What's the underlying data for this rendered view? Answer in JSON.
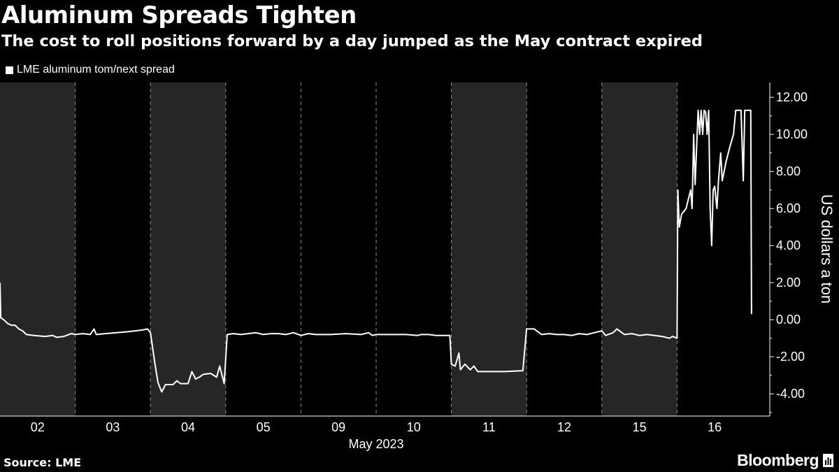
{
  "title": "Aluminum Spreads Tighten",
  "subtitle": "The cost to roll positions forward by a day jumped as the May contract expired",
  "legend": "LME aluminum tom/next spread",
  "source": "Source: LME",
  "brand": "Bloomberg",
  "colors": {
    "background": "#000000",
    "line": "#ffffff",
    "band": "#262626",
    "grid": "#8a8a8a",
    "text": "#ffffff"
  },
  "chart_data": {
    "type": "line",
    "xlabel": "May 2023",
    "ylabel": "US dollars a ton",
    "ylim": [
      -5.2,
      12.8
    ],
    "yticks": [
      "12.00",
      "10.00",
      "8.00",
      "6.00",
      "4.00",
      "2.00",
      "0.00",
      "-2.00",
      "-4.00"
    ],
    "ytick_values": [
      12,
      10,
      8,
      6,
      4,
      2,
      0,
      -2,
      -4
    ],
    "categories": [
      "02",
      "03",
      "04",
      "05",
      "09",
      "10",
      "11",
      "12",
      "15",
      "16"
    ],
    "shaded_days": [
      "02",
      "04",
      "11",
      "15"
    ],
    "grid": "vertical dashed day separators",
    "legend_position": "top-left",
    "series": [
      {
        "name": "LME aluminum tom/next spread",
        "points": [
          [
            0.0,
            2.0
          ],
          [
            0.01,
            0.1
          ],
          [
            0.05,
            0.0
          ],
          [
            0.1,
            -0.2
          ],
          [
            0.15,
            -0.3
          ],
          [
            0.2,
            -0.3
          ],
          [
            0.25,
            -0.5
          ],
          [
            0.3,
            -0.6
          ],
          [
            0.35,
            -0.8
          ],
          [
            0.45,
            -0.85
          ],
          [
            0.6,
            -0.9
          ],
          [
            0.7,
            -0.85
          ],
          [
            0.75,
            -0.95
          ],
          [
            0.85,
            -0.9
          ],
          [
            0.95,
            -0.75
          ],
          [
            1.0,
            -0.8
          ],
          [
            1.1,
            -0.75
          ],
          [
            1.2,
            -0.8
          ],
          [
            1.25,
            -0.5
          ],
          [
            1.28,
            -0.8
          ],
          [
            1.4,
            -0.75
          ],
          [
            1.55,
            -0.7
          ],
          [
            1.7,
            -0.65
          ],
          [
            1.8,
            -0.6
          ],
          [
            1.9,
            -0.55
          ],
          [
            1.96,
            -0.5
          ],
          [
            2.0,
            -0.7
          ],
          [
            2.06,
            -2.4
          ],
          [
            2.1,
            -3.4
          ],
          [
            2.15,
            -3.9
          ],
          [
            2.2,
            -3.5
          ],
          [
            2.3,
            -3.5
          ],
          [
            2.35,
            -3.3
          ],
          [
            2.4,
            -3.45
          ],
          [
            2.5,
            -3.45
          ],
          [
            2.55,
            -2.8
          ],
          [
            2.6,
            -3.2
          ],
          [
            2.65,
            -3.1
          ],
          [
            2.7,
            -2.95
          ],
          [
            2.8,
            -2.9
          ],
          [
            2.88,
            -3.1
          ],
          [
            2.92,
            -2.5
          ],
          [
            2.98,
            -3.45
          ],
          [
            3.02,
            -0.8
          ],
          [
            3.1,
            -0.75
          ],
          [
            3.2,
            -0.8
          ],
          [
            3.3,
            -0.75
          ],
          [
            3.4,
            -0.7
          ],
          [
            3.5,
            -0.8
          ],
          [
            3.6,
            -0.75
          ],
          [
            3.7,
            -0.75
          ],
          [
            3.8,
            -0.8
          ],
          [
            3.9,
            -0.7
          ],
          [
            4.0,
            -0.85
          ],
          [
            4.1,
            -0.75
          ],
          [
            4.2,
            -0.8
          ],
          [
            4.4,
            -0.8
          ],
          [
            4.6,
            -0.75
          ],
          [
            4.8,
            -0.8
          ],
          [
            4.9,
            -0.7
          ],
          [
            4.95,
            -0.85
          ],
          [
            5.0,
            -0.8
          ],
          [
            5.2,
            -0.8
          ],
          [
            5.4,
            -0.8
          ],
          [
            5.55,
            -0.85
          ],
          [
            5.6,
            -0.8
          ],
          [
            5.7,
            -0.8
          ],
          [
            5.8,
            -0.85
          ],
          [
            5.98,
            -0.85
          ],
          [
            6.0,
            -2.4
          ],
          [
            6.05,
            -2.5
          ],
          [
            6.1,
            -1.8
          ],
          [
            6.12,
            -2.7
          ],
          [
            6.18,
            -2.4
          ],
          [
            6.25,
            -2.7
          ],
          [
            6.3,
            -2.5
          ],
          [
            6.35,
            -2.8
          ],
          [
            6.5,
            -2.8
          ],
          [
            6.7,
            -2.8
          ],
          [
            6.95,
            -2.75
          ],
          [
            7.0,
            -0.5
          ],
          [
            7.1,
            -0.5
          ],
          [
            7.2,
            -0.8
          ],
          [
            7.3,
            -0.75
          ],
          [
            7.4,
            -0.8
          ],
          [
            7.5,
            -0.8
          ],
          [
            7.6,
            -0.85
          ],
          [
            7.7,
            -0.75
          ],
          [
            7.8,
            -0.8
          ],
          [
            7.9,
            -0.7
          ],
          [
            8.0,
            -0.6
          ],
          [
            8.05,
            -0.85
          ],
          [
            8.15,
            -0.7
          ],
          [
            8.2,
            -0.5
          ],
          [
            8.3,
            -0.8
          ],
          [
            8.4,
            -0.75
          ],
          [
            8.5,
            -0.85
          ],
          [
            8.6,
            -0.8
          ],
          [
            8.7,
            -0.85
          ],
          [
            8.8,
            -0.9
          ],
          [
            8.9,
            -1.0
          ],
          [
            8.94,
            -0.9
          ],
          [
            9.0,
            -1.0
          ],
          [
            9.01,
            7.0
          ],
          [
            9.03,
            5.0
          ],
          [
            9.06,
            5.7
          ],
          [
            9.12,
            6.0
          ],
          [
            9.15,
            6.5
          ],
          [
            9.18,
            7.0
          ],
          [
            9.2,
            6.0
          ],
          [
            9.22,
            10.0
          ],
          [
            9.24,
            7.3
          ],
          [
            9.28,
            11.3
          ],
          [
            9.3,
            10.0
          ],
          [
            9.32,
            11.3
          ],
          [
            9.34,
            10.0
          ],
          [
            9.36,
            11.3
          ],
          [
            9.38,
            11.2
          ],
          [
            9.4,
            10.0
          ],
          [
            9.42,
            11.3
          ],
          [
            9.44,
            6.0
          ],
          [
            9.46,
            4.0
          ],
          [
            9.48,
            7.0
          ],
          [
            9.5,
            7.2
          ],
          [
            9.53,
            6.0
          ],
          [
            9.55,
            7.5
          ],
          [
            9.58,
            9.0
          ],
          [
            9.6,
            7.5
          ],
          [
            9.65,
            8.5
          ],
          [
            9.7,
            9.3
          ],
          [
            9.75,
            10.0
          ],
          [
            9.78,
            11.3
          ],
          [
            9.85,
            11.3
          ],
          [
            9.88,
            7.5
          ],
          [
            9.9,
            11.3
          ],
          [
            9.98,
            11.3
          ],
          [
            9.99,
            0.3
          ]
        ]
      }
    ]
  }
}
